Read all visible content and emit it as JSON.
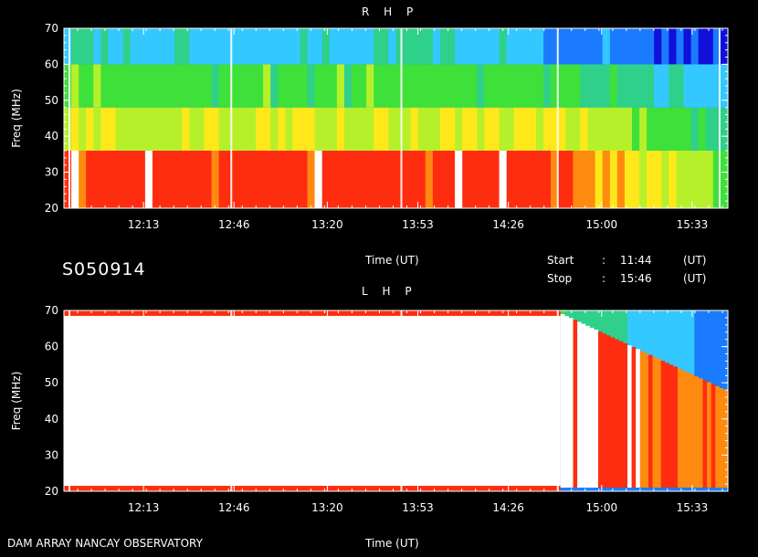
{
  "colors": {
    "background": "#000000",
    "foreground": "#ffffff",
    "intensity_scale": [
      "#1010d8",
      "#1a7bff",
      "#33c8ff",
      "#2fd08a",
      "#3ee03a",
      "#b6f02a",
      "#ffe81a",
      "#ff8a10",
      "#ff2d10",
      "#ffffff"
    ]
  },
  "header": {
    "source": "DAM ARRAY  NANCAY OBSERVATORY"
  },
  "session": {
    "id": "S050914",
    "start_label": "Start",
    "start_value": "11:44",
    "stop_label": "Stop",
    "stop_value": "15:46",
    "sep": ":",
    "unit": "(UT)"
  },
  "chart_data": [
    {
      "type": "heatmap",
      "title": "R H P",
      "xlabel": "Time (UT)",
      "ylabel": "Freq (MHz)",
      "x_ticks": [
        "12:13",
        "12:46",
        "13:20",
        "13:53",
        "14:26",
        "15:00",
        "15:33"
      ],
      "y_ticks": [
        20,
        30,
        40,
        50,
        60,
        70
      ],
      "xlim": [
        "11:44",
        "15:46"
      ],
      "ylim": [
        20,
        70
      ],
      "bands": [
        {
          "freq": [
            20,
            36
          ],
          "intensity": 0.85,
          "fade_from": "14:40",
          "fade_to": 0.45
        },
        {
          "freq": [
            36,
            48
          ],
          "intensity": 0.6,
          "fade_from": "14:50",
          "fade_to": 0.35
        },
        {
          "freq": [
            48,
            60
          ],
          "intensity": 0.45,
          "fade_from": "14:30",
          "fade_to": 0.25
        },
        {
          "freq": [
            60,
            70
          ],
          "intensity": 0.28,
          "fade_from": "14:20",
          "fade_to": 0.08
        }
      ],
      "vertical_lines": [
        "11:46",
        "12:45",
        "13:47",
        "14:44",
        "15:43"
      ]
    },
    {
      "type": "heatmap",
      "title": "L H P",
      "xlabel": "Time (UT)",
      "ylabel": "Freq (MHz)",
      "x_ticks": [
        "12:13",
        "12:46",
        "13:20",
        "13:53",
        "14:26",
        "15:00",
        "15:33"
      ],
      "y_ticks": [
        20,
        30,
        40,
        50,
        60,
        70
      ],
      "xlim": [
        "11:44",
        "15:46"
      ],
      "ylim": [
        20,
        70
      ],
      "saturated_region": {
        "time": [
          "11:44",
          "14:45"
        ],
        "freq": [
          21,
          69
        ],
        "intensity": 1.0
      },
      "decay_region": {
        "time": [
          "14:45",
          "15:46"
        ],
        "freq_top_start": 69,
        "freq_top_end": 48,
        "intensity": 0.75
      },
      "vertical_lines": [
        "11:46",
        "12:45",
        "13:47",
        "14:44"
      ]
    }
  ]
}
